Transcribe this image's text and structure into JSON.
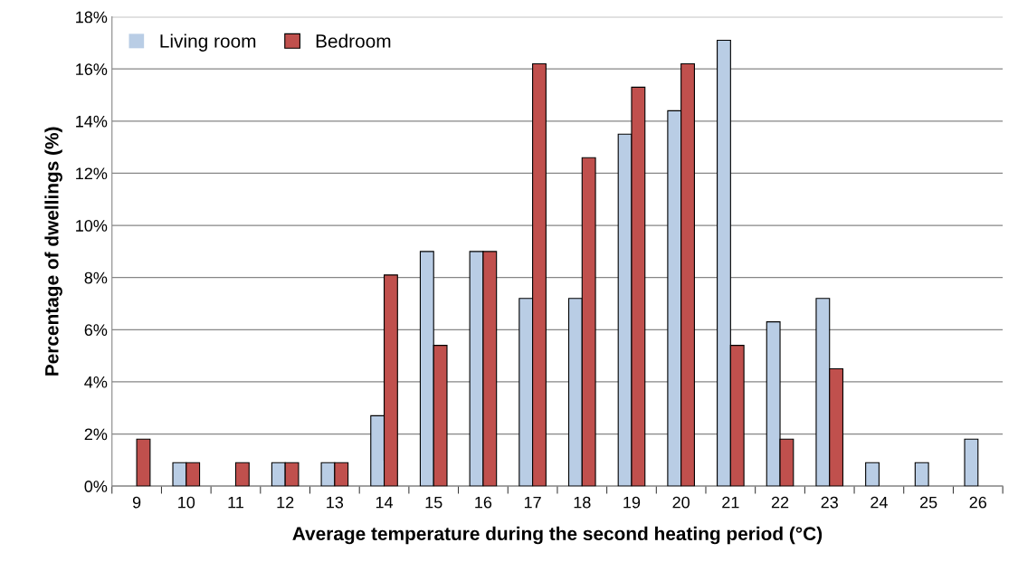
{
  "chart_data": {
    "type": "bar",
    "xlabel": "Average temperature during the second heating period (°C)",
    "ylabel": "Percentage of dwellings (%)",
    "categories": [
      "9",
      "10",
      "11",
      "12",
      "13",
      "14",
      "15",
      "16",
      "17",
      "18",
      "19",
      "20",
      "21",
      "22",
      "23",
      "24",
      "25",
      "26"
    ],
    "series": [
      {
        "name": "Living room",
        "color": "#b9cde5",
        "values": [
          0,
          0.9,
          0,
          0.9,
          0.9,
          2.7,
          9.0,
          9.0,
          7.2,
          7.2,
          13.5,
          14.4,
          17.1,
          6.3,
          7.2,
          0.9,
          0.9,
          1.8
        ]
      },
      {
        "name": "Bedroom",
        "color": "#c0504d",
        "values": [
          1.8,
          0.9,
          0.9,
          0.9,
          0.9,
          8.1,
          5.4,
          9.0,
          16.2,
          12.6,
          15.3,
          16.2,
          5.4,
          1.8,
          4.5,
          0,
          0,
          0
        ]
      }
    ],
    "ylim": [
      0,
      18
    ],
    "yticks": [
      {
        "value": 0,
        "label": "0%"
      },
      {
        "value": 2,
        "label": "2%"
      },
      {
        "value": 4,
        "label": "4%"
      },
      {
        "value": 6,
        "label": "6%"
      },
      {
        "value": 8,
        "label": "8%"
      },
      {
        "value": 10,
        "label": "10%"
      },
      {
        "value": 12,
        "label": "12%"
      },
      {
        "value": 14,
        "label": "14%"
      },
      {
        "value": 16,
        "label": "16%"
      },
      {
        "value": 18,
        "label": "18%"
      }
    ],
    "grid": "y",
    "legend": "top left"
  }
}
